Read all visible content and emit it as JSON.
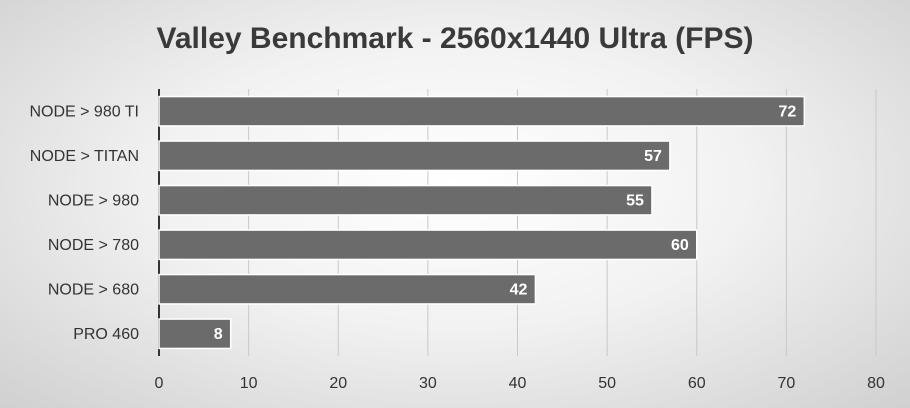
{
  "chart_data": {
    "type": "bar",
    "title": "Valley Benchmark - 2560x1440 Ultra (FPS)",
    "categories": [
      "NODE > 980 TI",
      "NODE > TITAN",
      "NODE > 980",
      "NODE > 780",
      "NODE > 680",
      "PRO 460"
    ],
    "values": [
      72,
      57,
      55,
      60,
      42,
      8
    ],
    "color": "#6b6b6b",
    "xlim": [
      0,
      80
    ],
    "xticks": [
      0,
      10,
      20,
      30,
      40,
      50,
      60,
      70,
      80
    ],
    "grid": true
  }
}
